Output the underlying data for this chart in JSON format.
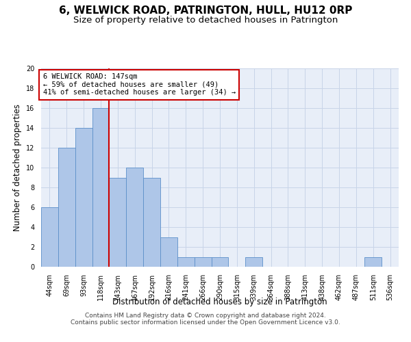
{
  "title": "6, WELWICK ROAD, PATRINGTON, HULL, HU12 0RP",
  "subtitle": "Size of property relative to detached houses in Patrington",
  "xlabel": "Distribution of detached houses by size in Patrington",
  "ylabel": "Number of detached properties",
  "categories": [
    "44sqm",
    "69sqm",
    "93sqm",
    "118sqm",
    "143sqm",
    "167sqm",
    "192sqm",
    "216sqm",
    "241sqm",
    "266sqm",
    "290sqm",
    "315sqm",
    "339sqm",
    "364sqm",
    "388sqm",
    "413sqm",
    "438sqm",
    "462sqm",
    "487sqm",
    "511sqm",
    "536sqm"
  ],
  "values": [
    6,
    12,
    14,
    16,
    9,
    10,
    9,
    3,
    1,
    1,
    1,
    0,
    1,
    0,
    0,
    0,
    0,
    0,
    0,
    1,
    0
  ],
  "bar_color": "#aec6e8",
  "bar_edge_color": "#5b8fc9",
  "vline_x_index": 4,
  "vline_color": "#cc0000",
  "annotation_text": "6 WELWICK ROAD: 147sqm\n← 59% of detached houses are smaller (49)\n41% of semi-detached houses are larger (34) →",
  "annotation_box_color": "#cc0000",
  "ylim": [
    0,
    20
  ],
  "yticks": [
    0,
    2,
    4,
    6,
    8,
    10,
    12,
    14,
    16,
    18,
    20
  ],
  "footnote_line1": "Contains HM Land Registry data © Crown copyright and database right 2024.",
  "footnote_line2": "Contains public sector information licensed under the Open Government Licence v3.0.",
  "grid_color": "#c8d4e8",
  "bg_color": "#e8eef8",
  "title_fontsize": 11,
  "subtitle_fontsize": 9.5,
  "label_fontsize": 8.5,
  "tick_fontsize": 7,
  "annot_fontsize": 7.5,
  "footnote_fontsize": 6.5
}
